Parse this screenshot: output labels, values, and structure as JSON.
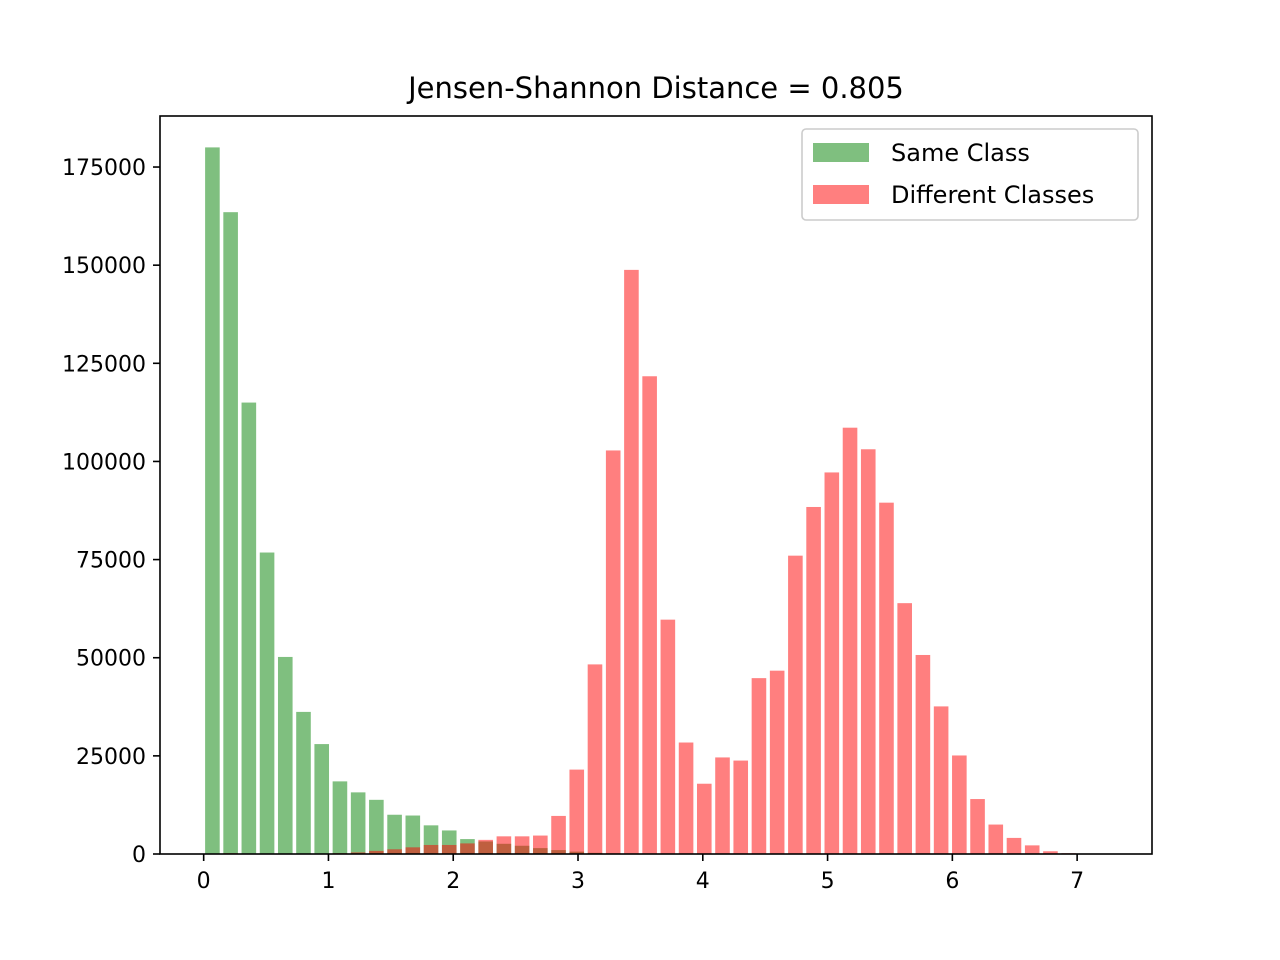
{
  "chart_data": {
    "type": "bar",
    "title": "Jensen-Shannon Distance = 0.805",
    "xlabel": "",
    "ylabel": "",
    "xlim": [
      -0.35,
      7.6
    ],
    "ylim": [
      0,
      188000
    ],
    "x_ticks": [
      0,
      1,
      2,
      3,
      4,
      5,
      6,
      7
    ],
    "y_ticks": [
      0,
      25000,
      50000,
      75000,
      100000,
      125000,
      150000,
      175000
    ],
    "grid": false,
    "legend_position": "top-right",
    "bin_width": 0.146,
    "bar_width": 0.117,
    "bins": [
      0.07,
      0.216,
      0.362,
      0.508,
      0.654,
      0.8,
      0.946,
      1.092,
      1.238,
      1.384,
      1.53,
      1.676,
      1.822,
      1.968,
      2.114,
      2.26,
      2.406,
      2.552,
      2.698,
      2.844,
      2.99,
      3.136,
      3.282,
      3.428,
      3.574,
      3.72,
      3.866,
      4.012,
      4.158,
      4.304,
      4.45,
      4.596,
      4.742,
      4.888,
      5.034,
      5.18,
      5.326,
      5.472,
      5.618,
      5.764,
      5.91,
      6.056,
      6.202,
      6.348,
      6.494,
      6.64,
      6.786,
      6.932,
      7.078,
      7.224
    ],
    "series": [
      {
        "name": "Same Class",
        "color": "#008000",
        "opacity": 0.5,
        "values": [
          180000,
          163500,
          115000,
          76800,
          50200,
          36200,
          28000,
          18500,
          15700,
          13800,
          10000,
          9800,
          7300,
          6000,
          3800,
          3200,
          2600,
          2100,
          1500,
          1000,
          600,
          300,
          150,
          80,
          40,
          20,
          10,
          5,
          0,
          0,
          0,
          0,
          0,
          0,
          0,
          0,
          0,
          0,
          0,
          0,
          0,
          0,
          0,
          0,
          0,
          0,
          0,
          0,
          0,
          0
        ]
      },
      {
        "name": "Different Classes",
        "color": "#ff0000",
        "opacity": 0.5,
        "values": [
          0,
          200,
          50,
          50,
          100,
          100,
          100,
          200,
          400,
          800,
          1200,
          1700,
          2300,
          2300,
          2700,
          3600,
          4500,
          4500,
          4700,
          9700,
          21500,
          48300,
          102800,
          148800,
          121700,
          59700,
          28400,
          17900,
          24600,
          23800,
          44800,
          46700,
          76000,
          88400,
          97200,
          108600,
          103100,
          89500,
          63900,
          50700,
          37600,
          25100,
          14000,
          7500,
          4100,
          2200,
          700,
          200,
          100,
          50
        ]
      }
    ]
  }
}
